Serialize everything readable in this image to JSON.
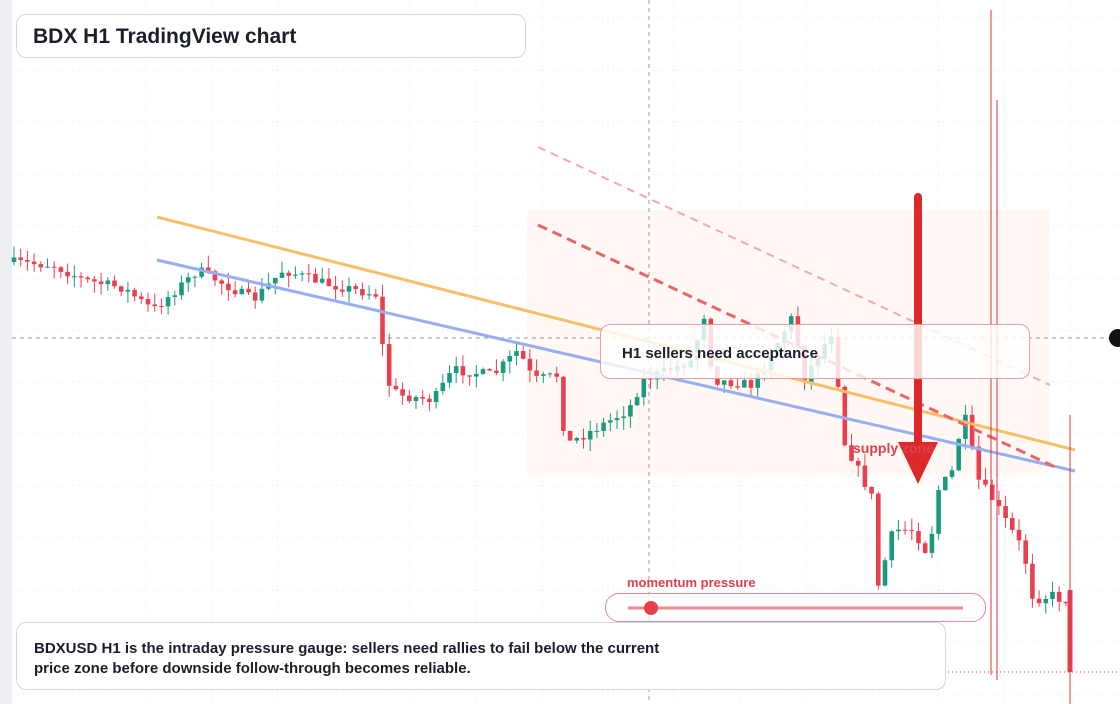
{
  "chart_data": {
    "type": "candlestick",
    "title": "BDX H1 TradingView chart",
    "annotation": "H1 sellers need acceptance",
    "zone_label": "supply zone",
    "gauge_label": "momentum pressure",
    "caption": "BDXUSD H1 is the intraday pressure gauge: sellers need rallies to fail below the current price zone before downside follow-through becomes reliable."
  }
}
